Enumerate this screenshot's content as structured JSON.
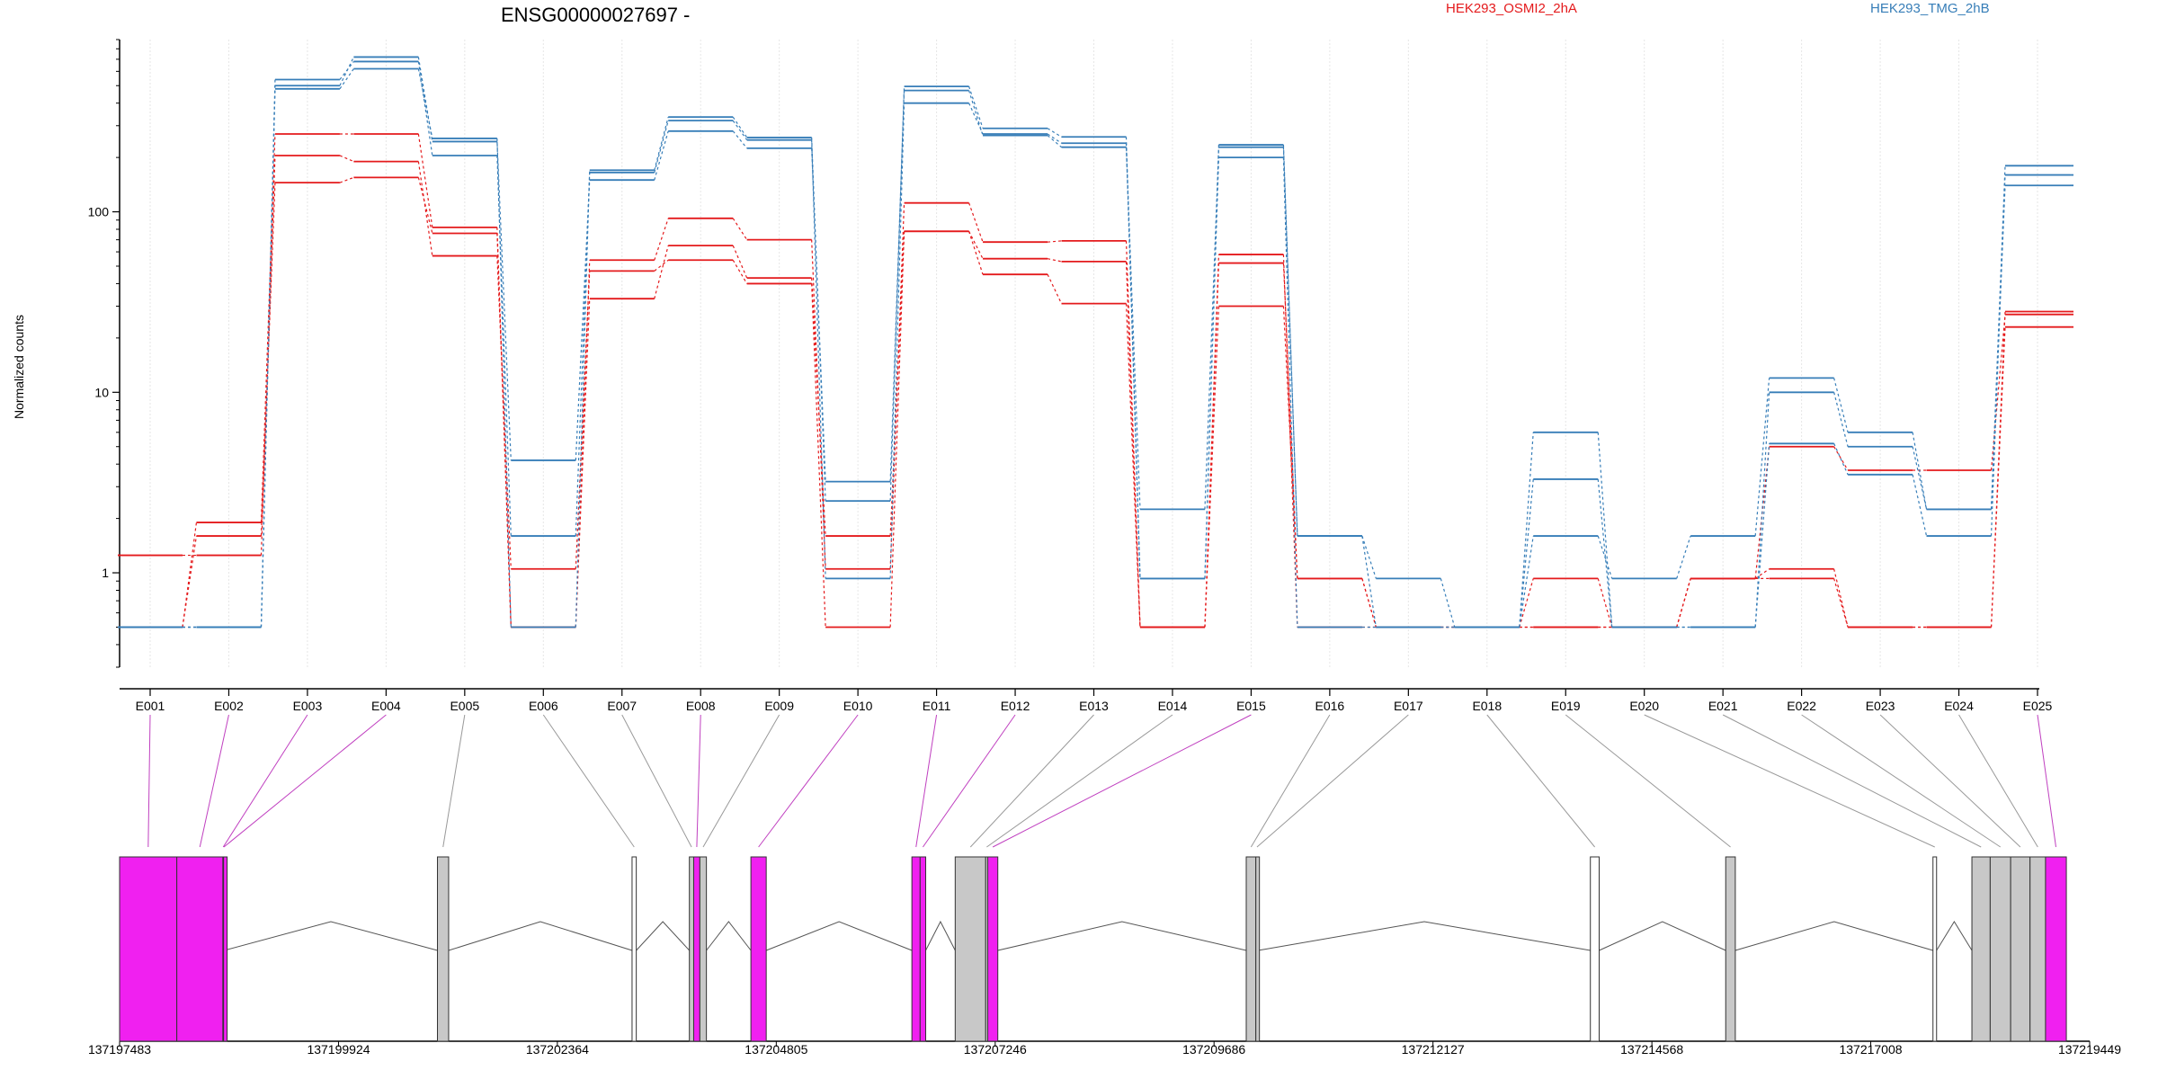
{
  "figure": {
    "title": "ENSG00000027697 -",
    "legend": [
      {
        "label": "HEK293_OSMI2_2hA",
        "color": "#e41a1c"
      },
      {
        "label": "HEK293_TMG_2hB",
        "color": "#377eb8"
      }
    ]
  },
  "chart_data": {
    "type": "line",
    "title": "ENSG00000027697 -",
    "ylabel": "Normalized counts",
    "xlabel": "",
    "yscale": "log",
    "ylim": [
      0.3,
      900
    ],
    "yticks": [
      1,
      10,
      100
    ],
    "ytick_labels": [
      "1",
      "10",
      "100"
    ],
    "grid": "vertical gridlines at each exon",
    "categories": [
      "E001",
      "E002",
      "E003",
      "E004",
      "E005",
      "E006",
      "E007",
      "E008",
      "E009",
      "E010",
      "E011",
      "E012",
      "E013",
      "E014",
      "E015",
      "E016",
      "E017",
      "E018",
      "E019",
      "E020",
      "E021",
      "E022",
      "E023",
      "E024",
      "E025"
    ],
    "zero_floor": 0.5,
    "series": [
      {
        "group": "HEK293_OSMI2_2hA",
        "color": "#e41a1c",
        "values": [
          1.25,
          1.25,
          205,
          190,
          57,
          1.05,
          47,
          54,
          40,
          0.5,
          78,
          45,
          31,
          0.5,
          30,
          0.93,
          0.5,
          0.5,
          0.5,
          0.5,
          0.93,
          0.93,
          0.5,
          0.5,
          23
        ]
      },
      {
        "group": "HEK293_OSMI2_2hA",
        "color": "#e41a1c",
        "values": [
          0.5,
          1.6,
          145,
          155,
          76,
          0.5,
          33,
          65,
          43,
          1.6,
          78,
          55,
          53,
          0.5,
          52,
          0.93,
          0.5,
          0.5,
          0.93,
          0.5,
          0.93,
          5.0,
          3.7,
          3.7,
          27
        ]
      },
      {
        "group": "HEK293_OSMI2_2hA",
        "color": "#e41a1c",
        "values": [
          0.5,
          1.9,
          270,
          270,
          82,
          0.5,
          54,
          92,
          70,
          1.05,
          112,
          68,
          69,
          0.5,
          58,
          0.5,
          0.5,
          0.5,
          0.5,
          0.5,
          0.93,
          1.05,
          0.5,
          0.5,
          28
        ]
      },
      {
        "group": "HEK293_TMG_2hB",
        "color": "#377eb8",
        "values": [
          0.5,
          0.5,
          500,
          720,
          245,
          4.2,
          150,
          280,
          225,
          3.2,
          470,
          265,
          228,
          2.25,
          228,
          1.6,
          0.93,
          0.5,
          1.6,
          0.93,
          1.6,
          12,
          6,
          2.25,
          180
        ]
      },
      {
        "group": "HEK293_TMG_2hB",
        "color": "#377eb8",
        "values": [
          0.5,
          0.5,
          540,
          680,
          205,
          1.6,
          165,
          320,
          250,
          0.93,
          400,
          270,
          240,
          0.93,
          200,
          0.5,
          0.5,
          0.5,
          3.3,
          0.5,
          0.5,
          10,
          5,
          2.25,
          140
        ]
      },
      {
        "group": "HEK293_TMG_2hB",
        "color": "#377eb8",
        "values": [
          0.5,
          0.5,
          480,
          620,
          255,
          0.5,
          170,
          335,
          258,
          2.5,
          495,
          290,
          260,
          0.93,
          235,
          1.6,
          0.5,
          0.5,
          6,
          0.5,
          0.5,
          5.2,
          3.5,
          1.6,
          160
        ]
      }
    ]
  },
  "gene_model": {
    "coord_labels": [
      "137197483",
      "137199924",
      "137202364",
      "137204805",
      "137207246",
      "137209686",
      "137212127",
      "137214568",
      "137217008",
      "137219449"
    ],
    "exon_colors": {
      "expressed": "#f020f0",
      "other": "#c8c8c8",
      "outline": "#333333"
    },
    "exons": [
      {
        "id": "E001",
        "start": 137197483,
        "end": 137198121,
        "color": "#f020f0"
      },
      {
        "id": "E002",
        "start": 137198121,
        "end": 137198635,
        "color": "#f020f0"
      },
      {
        "id": "E003",
        "start": 137198635,
        "end": 137198642,
        "color": "#f020f0"
      },
      {
        "id": "E004",
        "start": 137198642,
        "end": 137198650,
        "color": "#f020f0"
      },
      {
        "id": "E005",
        "start": 137201027,
        "end": 137201152,
        "color": "#c8c8c8"
      },
      {
        "id": "E006",
        "start": 137203197,
        "end": 137203244,
        "color": "#ffffff"
      },
      {
        "id": "E007",
        "start": 137203836,
        "end": 137203884,
        "color": "#c8c8c8"
      },
      {
        "id": "E008",
        "start": 137203884,
        "end": 137203953,
        "color": "#f020f0"
      },
      {
        "id": "E009",
        "start": 137203953,
        "end": 137204026,
        "color": "#c8c8c8"
      },
      {
        "id": "E010",
        "start": 137204522,
        "end": 137204693,
        "color": "#f020f0"
      },
      {
        "id": "E011",
        "start": 137206317,
        "end": 137206409,
        "color": "#f020f0"
      },
      {
        "id": "E012",
        "start": 137206409,
        "end": 137206471,
        "color": "#f020f0"
      },
      {
        "id": "E013",
        "start": 137206800,
        "end": 137207140,
        "color": "#c8c8c8"
      },
      {
        "id": "E014",
        "start": 137207140,
        "end": 137207163,
        "color": "#c8c8c8"
      },
      {
        "id": "E015",
        "start": 137207163,
        "end": 137207275,
        "color": "#f020f0"
      },
      {
        "id": "E016",
        "start": 137210045,
        "end": 137210152,
        "color": "#c8c8c8"
      },
      {
        "id": "E017",
        "start": 137210152,
        "end": 137210178,
        "color": "#c8c8c8"
      },
      {
        "id": "E018",
        "start": 137213882,
        "end": 137213980,
        "color": "#ffffff"
      },
      {
        "id": "E019",
        "start": 137215391,
        "end": 137215498,
        "color": "#c8c8c8"
      },
      {
        "id": "E020",
        "start": 137217702,
        "end": 137217742,
        "color": "#ffffff"
      },
      {
        "id": "E021",
        "start": 137218136,
        "end": 137218340,
        "color": "#c8c8c8"
      },
      {
        "id": "E022",
        "start": 137218340,
        "end": 137218568,
        "color": "#c8c8c8"
      },
      {
        "id": "E023",
        "start": 137218568,
        "end": 137218784,
        "color": "#c8c8c8"
      },
      {
        "id": "E024",
        "start": 137218784,
        "end": 137218957,
        "color": "#c8c8c8"
      },
      {
        "id": "E025",
        "start": 137218957,
        "end": 137219189,
        "color": "#f020f0"
      }
    ]
  }
}
